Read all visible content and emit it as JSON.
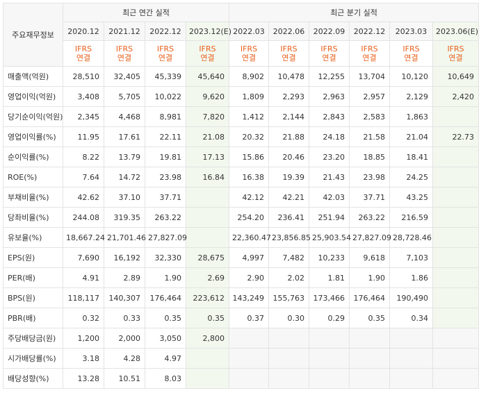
{
  "header": {
    "corner_label": "주요재무정보",
    "annual_group": "최근 연간 실적",
    "quarter_group": "최근 분기 실적",
    "periods": [
      "2020.12",
      "2021.12",
      "2022.12",
      "2023.12(E)",
      "2022.03",
      "2022.06",
      "2022.09",
      "2022.12",
      "2023.03",
      "2023.06(E)"
    ],
    "ifrs_line1": "IFRS",
    "ifrs_line2": "연결"
  },
  "rows": [
    {
      "label": "매출액(억원)",
      "values": [
        "28,510",
        "32,405",
        "45,339",
        "45,640",
        "8,902",
        "10,478",
        "12,255",
        "13,704",
        "10,120",
        "10,649"
      ]
    },
    {
      "label": "영업이익(억원)",
      "values": [
        "3,408",
        "5,705",
        "10,022",
        "9,620",
        "1,809",
        "2,293",
        "2,963",
        "2,957",
        "2,129",
        "2,420"
      ]
    },
    {
      "label": "당기순이익(억원)",
      "values": [
        "2,345",
        "4,468",
        "8,981",
        "7,820",
        "1,412",
        "2,144",
        "2,843",
        "2,583",
        "1,863",
        ""
      ]
    },
    {
      "label": "영업이익률(%)",
      "values": [
        "11.95",
        "17.61",
        "22.11",
        "21.08",
        "20.32",
        "21.88",
        "24.18",
        "21.58",
        "21.04",
        "22.73"
      ]
    },
    {
      "label": "순이익률(%)",
      "values": [
        "8.22",
        "13.79",
        "19.81",
        "17.13",
        "15.86",
        "20.46",
        "23.20",
        "18.85",
        "18.41",
        ""
      ]
    },
    {
      "label": "ROE(%)",
      "values": [
        "7.64",
        "14.72",
        "23.98",
        "16.84",
        "16.38",
        "19.39",
        "21.43",
        "23.98",
        "24.25",
        ""
      ]
    },
    {
      "label": "부채비율(%)",
      "values": [
        "42.62",
        "37.10",
        "37.71",
        "",
        "42.12",
        "42.21",
        "42.03",
        "37.71",
        "43.25",
        ""
      ]
    },
    {
      "label": "당좌비율(%)",
      "values": [
        "244.08",
        "319.35",
        "263.22",
        "",
        "254.20",
        "236.41",
        "251.94",
        "263.22",
        "216.59",
        ""
      ]
    },
    {
      "label": "유보율(%)",
      "values": [
        "18,667.24",
        "21,701.46",
        "27,827.09",
        "",
        "22,360.47",
        "23,856.85",
        "25,903.54",
        "27,827.09",
        "28,728.46",
        ""
      ]
    },
    {
      "label": "EPS(원)",
      "values": [
        "7,690",
        "16,192",
        "32,330",
        "28,675",
        "4,997",
        "7,482",
        "10,233",
        "9,618",
        "7,103",
        ""
      ]
    },
    {
      "label": "PER(배)",
      "values": [
        "4.91",
        "2.89",
        "1.90",
        "2.69",
        "2.90",
        "2.02",
        "1.81",
        "1.90",
        "1.86",
        ""
      ]
    },
    {
      "label": "BPS(원)",
      "values": [
        "118,117",
        "140,307",
        "176,464",
        "223,612",
        "143,249",
        "155,763",
        "173,466",
        "176,464",
        "190,490",
        ""
      ]
    },
    {
      "label": "PBR(배)",
      "values": [
        "0.32",
        "0.33",
        "0.35",
        "0.35",
        "0.37",
        "0.30",
        "0.29",
        "0.35",
        "0.34",
        ""
      ]
    },
    {
      "label": "주당배당금(원)",
      "values": [
        "1,200",
        "2,000",
        "3,050",
        "2,800",
        "",
        "",
        "",
        "",
        "",
        ""
      ]
    },
    {
      "label": "시가배당률(%)",
      "values": [
        "3.18",
        "4.28",
        "4.97",
        "",
        "",
        "",
        "",
        "",
        "",
        ""
      ]
    },
    {
      "label": "배당성향(%)",
      "values": [
        "13.28",
        "10.51",
        "8.03",
        "",
        "",
        "",
        "",
        "",
        "",
        ""
      ]
    }
  ]
}
